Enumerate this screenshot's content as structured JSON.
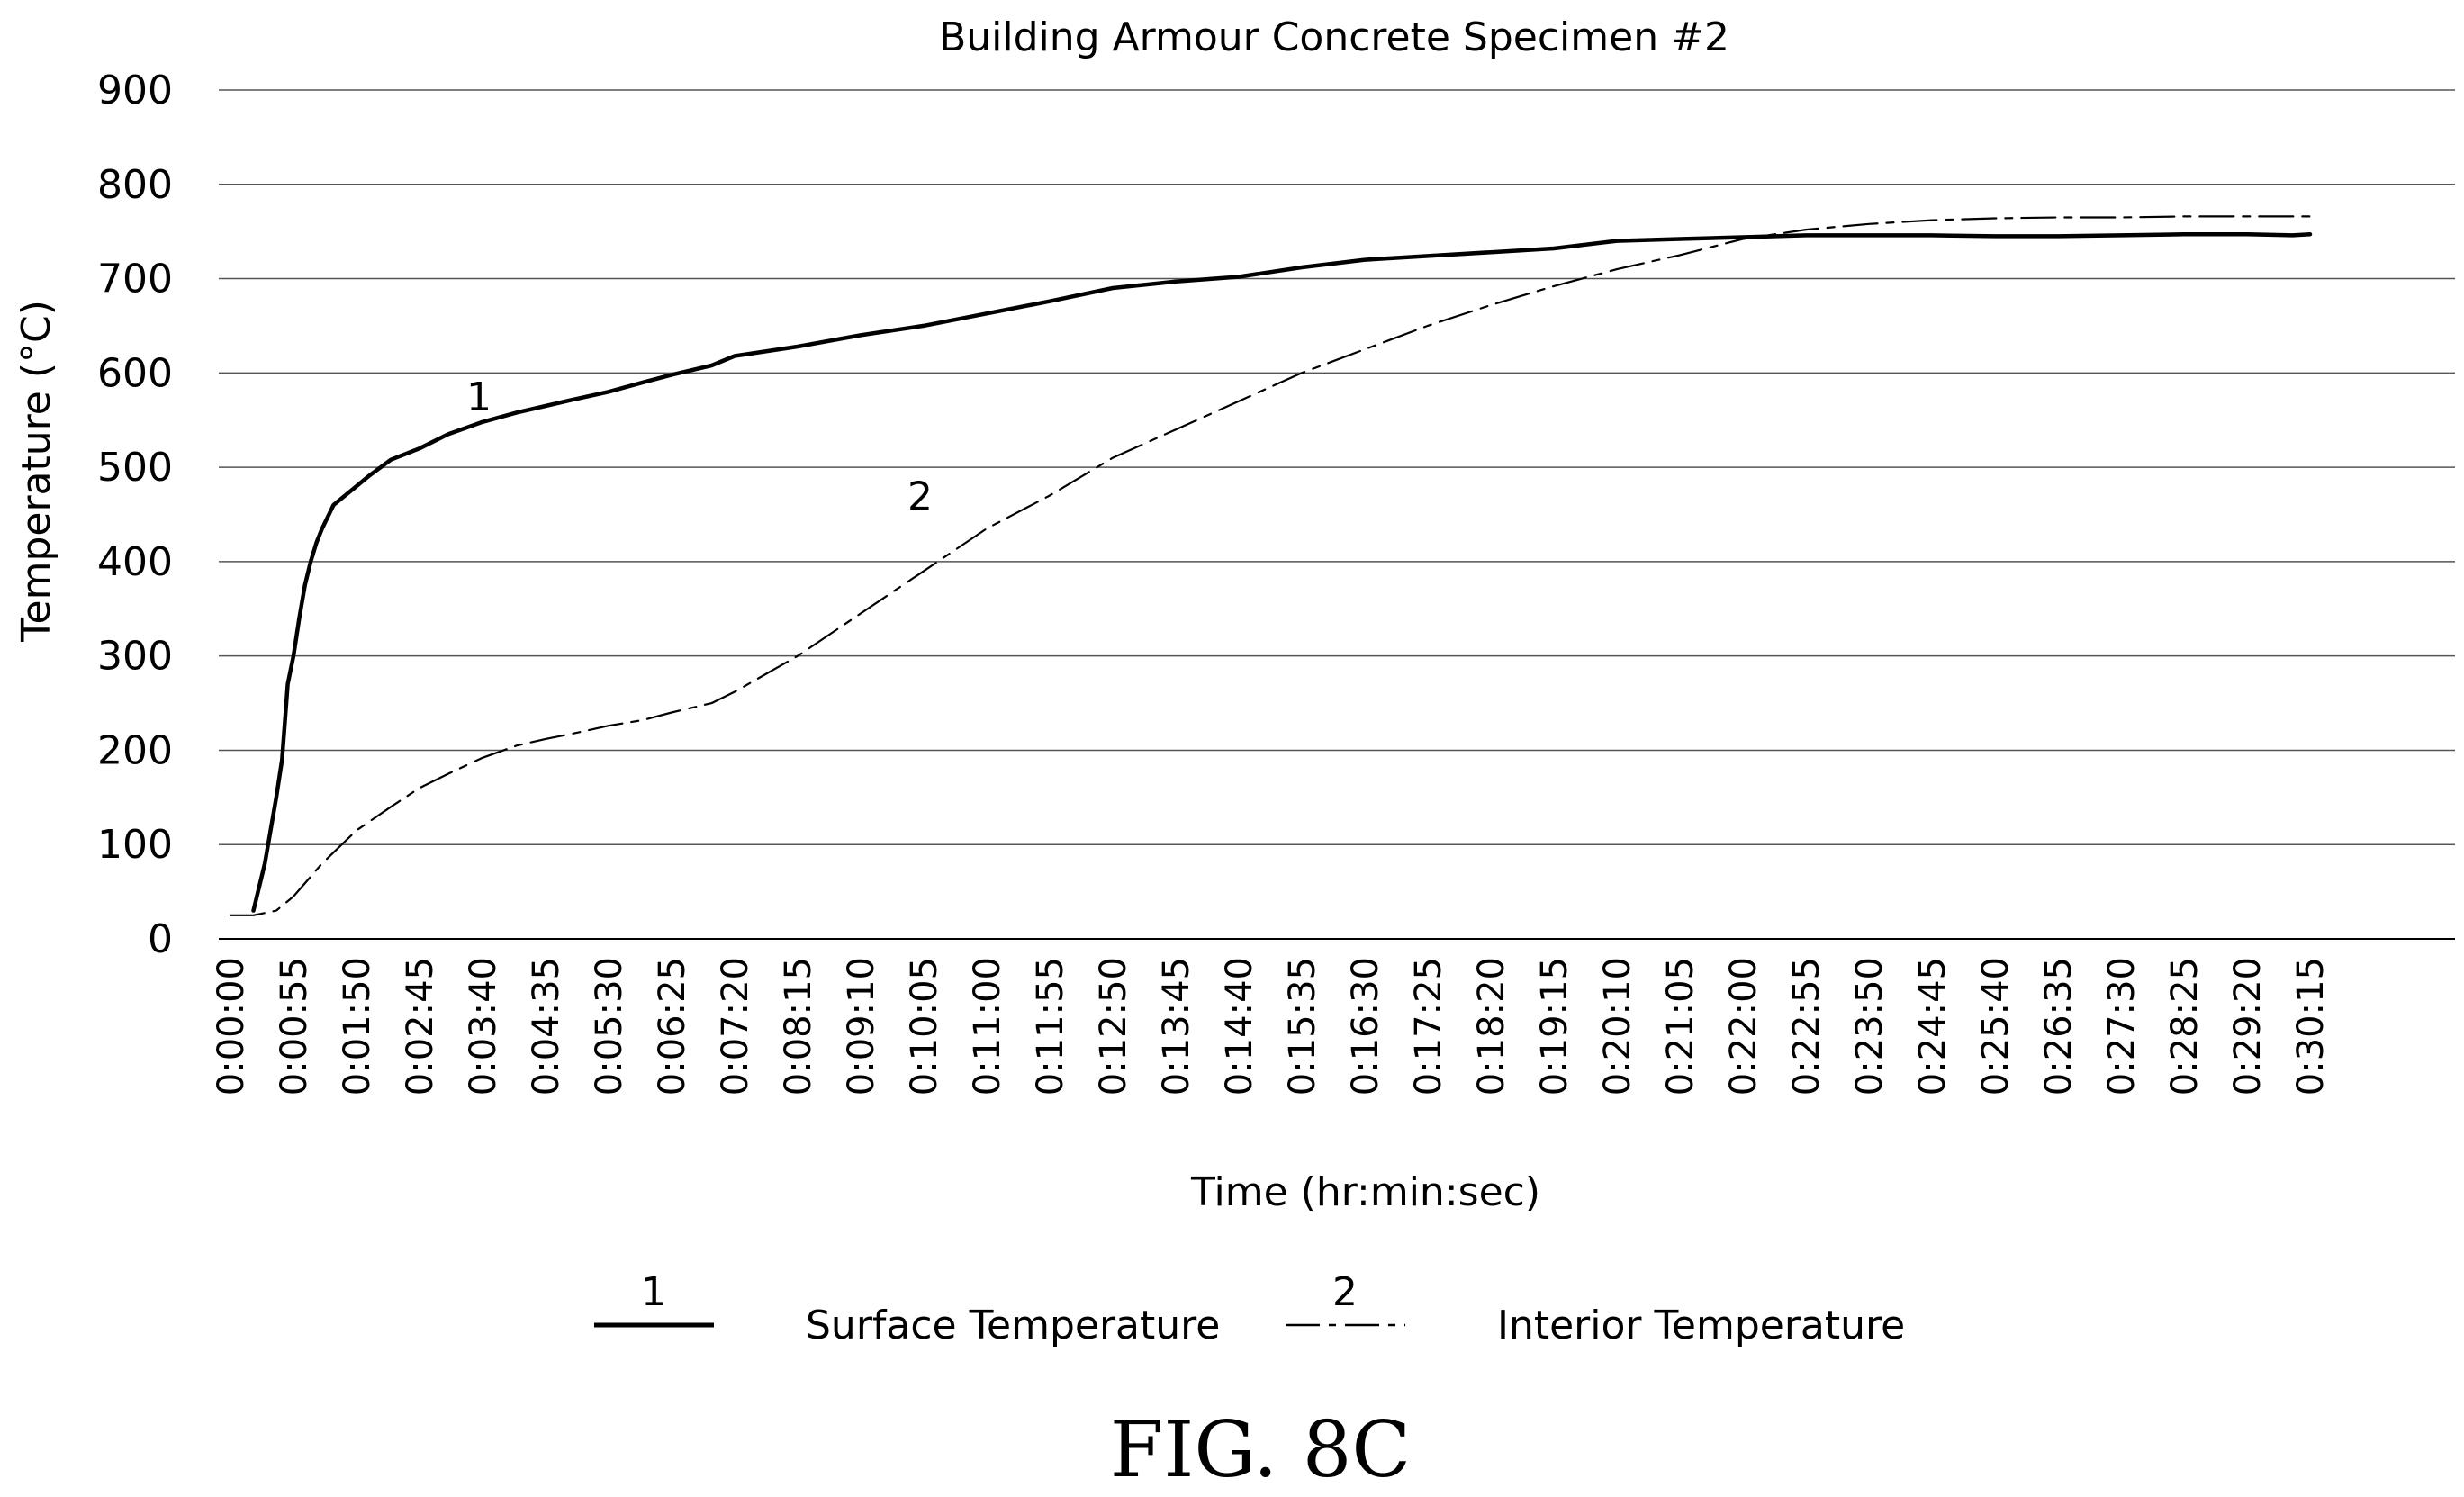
{
  "chart_data": {
    "type": "line",
    "title": "Building Armour Concrete Specimen #2",
    "xlabel": "Time (hr:min:sec)",
    "ylabel": "Temperature (°C)",
    "ylim": [
      0,
      900
    ],
    "yticks": [
      0,
      100,
      200,
      300,
      400,
      500,
      600,
      700,
      800,
      900
    ],
    "xlim": [
      "0:00:00",
      "0:33:00"
    ],
    "xticks": [
      "0:00:00",
      "0:00:55",
      "0:01:50",
      "0:02:45",
      "0:03:40",
      "0:04:35",
      "0:05:30",
      "0:06:25",
      "0:07:20",
      "0:08:15",
      "0:09:10",
      "0:10:05",
      "0:11:00",
      "0:11:55",
      "0:12:50",
      "0:13:45",
      "0:14:40",
      "0:15:35",
      "0:16:30",
      "0:17:25",
      "0:18:20",
      "0:19:15",
      "0:20:10",
      "0:21:05",
      "0:22:00",
      "0:22:55",
      "0:23:50",
      "0:24:45",
      "0:25:40",
      "0:26:35",
      "0:27:30",
      "0:28:25",
      "0:29:20",
      "0:30:15"
    ],
    "grid": true,
    "legend_position": "bottom",
    "series": [
      {
        "name": "Surface Temperature",
        "legend_label": "1",
        "curve_label": "1",
        "style": "solid",
        "x": [
          "0:00:20",
          "0:00:30",
          "0:00:40",
          "0:00:45",
          "0:00:50",
          "0:00:55",
          "0:01:00",
          "0:01:05",
          "0:01:10",
          "0:01:15",
          "0:01:20",
          "0:01:30",
          "0:01:40",
          "0:01:50",
          "0:02:00",
          "0:02:20",
          "0:02:45",
          "0:03:10",
          "0:03:40",
          "0:04:10",
          "0:04:35",
          "0:05:00",
          "0:05:30",
          "0:06:00",
          "0:06:25",
          "0:07:00",
          "0:07:20",
          "0:08:15",
          "0:09:10",
          "0:10:05",
          "0:11:00",
          "0:11:55",
          "0:12:50",
          "0:13:45",
          "0:14:40",
          "0:15:35",
          "0:16:30",
          "0:17:25",
          "0:18:20",
          "0:19:15",
          "0:20:10",
          "0:21:05",
          "0:22:00",
          "0:22:55",
          "0:23:50",
          "0:24:45",
          "0:25:40",
          "0:26:35",
          "0:27:30",
          "0:28:25",
          "0:29:20",
          "0:30:00",
          "0:30:15"
        ],
        "values": [
          30,
          80,
          150,
          190,
          270,
          300,
          340,
          375,
          400,
          420,
          435,
          460,
          470,
          480,
          490,
          508,
          520,
          535,
          548,
          558,
          565,
          572,
          580,
          590,
          598,
          608,
          618,
          628,
          640,
          650,
          663,
          676,
          690,
          697,
          702,
          712,
          720,
          724,
          728,
          732,
          740,
          742,
          744,
          746,
          746,
          746,
          745,
          745,
          746,
          747,
          747,
          746,
          747
        ]
      },
      {
        "name": "Interior Temperature",
        "legend_label": "2",
        "curve_label": "2",
        "style": "dashed",
        "x": [
          "0:00:00",
          "0:00:20",
          "0:00:40",
          "0:00:55",
          "0:01:20",
          "0:01:50",
          "0:02:20",
          "0:02:45",
          "0:03:10",
          "0:03:40",
          "0:04:10",
          "0:04:35",
          "0:05:00",
          "0:05:30",
          "0:06:00",
          "0:06:25",
          "0:07:00",
          "0:07:20",
          "0:08:15",
          "0:09:10",
          "0:10:05",
          "0:11:00",
          "0:11:55",
          "0:12:50",
          "0:13:45",
          "0:14:40",
          "0:15:35",
          "0:16:30",
          "0:17:25",
          "0:18:20",
          "0:19:15",
          "0:20:10",
          "0:21:05",
          "0:22:00",
          "0:22:55",
          "0:23:50",
          "0:24:45",
          "0:25:40",
          "0:26:35",
          "0:27:30",
          "0:28:25",
          "0:29:20",
          "0:30:15"
        ],
        "values": [
          25,
          25,
          30,
          45,
          80,
          115,
          140,
          160,
          175,
          192,
          205,
          212,
          218,
          226,
          232,
          240,
          250,
          262,
          300,
          345,
          390,
          435,
          470,
          510,
          540,
          570,
          600,
          625,
          650,
          672,
          692,
          710,
          725,
          742,
          752,
          758,
          762,
          764,
          765,
          765,
          766,
          766,
          766
        ]
      }
    ]
  },
  "figure_label": "FIG. 8C"
}
